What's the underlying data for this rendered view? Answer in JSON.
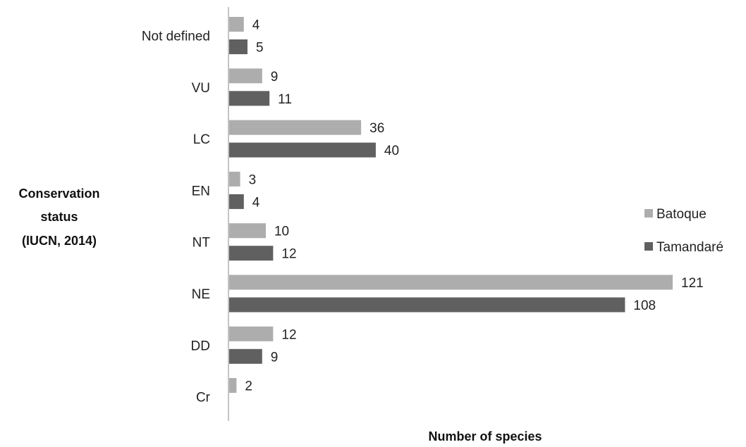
{
  "chart_data": {
    "type": "bar",
    "orientation": "horizontal",
    "categories": [
      "Not defined",
      "VU",
      "LC",
      "EN",
      "NT",
      "NE",
      "DD",
      "Cr"
    ],
    "series": [
      {
        "name": "Batoque",
        "color": "#adadad",
        "values": [
          4,
          9,
          36,
          3,
          10,
          121,
          12,
          2
        ]
      },
      {
        "name": "Tamandaré",
        "color": "#606060",
        "values": [
          5,
          11,
          40,
          4,
          12,
          108,
          9,
          null
        ]
      }
    ],
    "xlabel": "Number of species",
    "ylabel": [
      "Conservation",
      "status",
      "(IUCN, 2014)"
    ],
    "xlim": [
      0,
      121
    ],
    "grid": false,
    "legend_position": "right"
  }
}
